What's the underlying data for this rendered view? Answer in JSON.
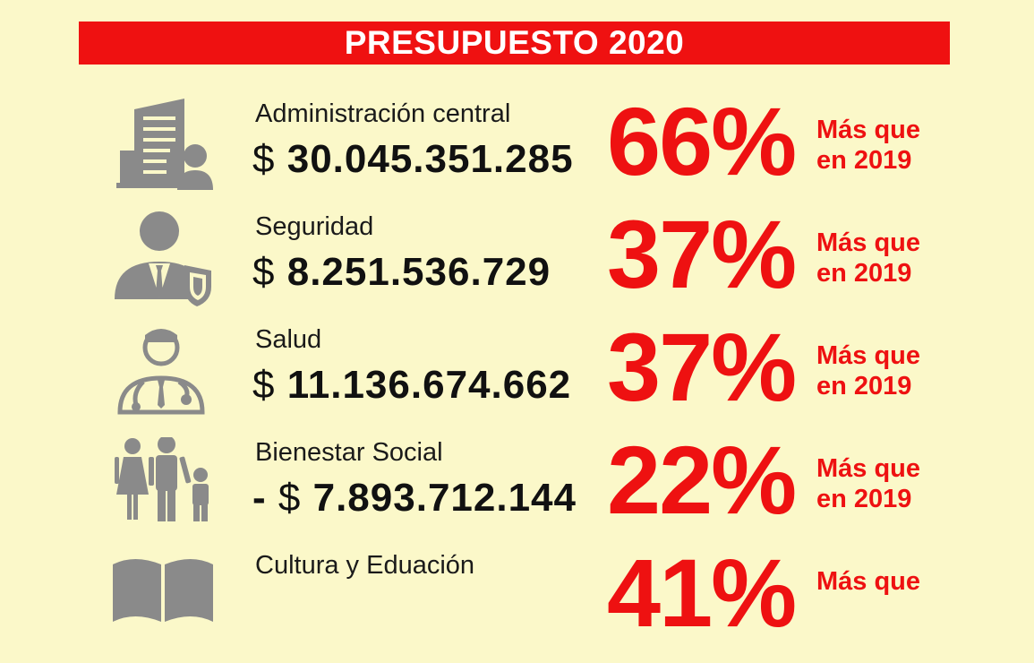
{
  "title": "PRESUPUESTO 2020",
  "colors": {
    "banner": "#ef1111",
    "accent": "#ee1111",
    "icon": "#8a8a8a",
    "background": "#fbf8c9"
  },
  "rows": [
    {
      "category": "Administración central",
      "prefix": "",
      "currency": "$",
      "amount": "30.045.351.285",
      "percent": "66%",
      "note_line1": "Más que",
      "note_line2": "en 2019",
      "icon": "building-person-icon"
    },
    {
      "category": "Seguridad",
      "prefix": "",
      "currency": "$",
      "amount": "8.251.536.729",
      "percent": "37%",
      "note_line1": "Más que",
      "note_line2": "en 2019",
      "icon": "security-person-icon"
    },
    {
      "category": "Salud",
      "prefix": "",
      "currency": "$",
      "amount": "11.136.674.662",
      "percent": "37%",
      "note_line1": "Más que",
      "note_line2": "en 2019",
      "icon": "doctor-icon"
    },
    {
      "category": "Bienestar Social",
      "prefix": "- ",
      "currency": "$",
      "amount": "7.893.712.144",
      "percent": "22%",
      "note_line1": "Más que",
      "note_line2": "en 2019",
      "icon": "family-icon"
    },
    {
      "category": "Cultura y Eduación",
      "prefix": "",
      "currency": "",
      "amount": "",
      "percent": "41%",
      "note_line1": "Más que",
      "note_line2": "",
      "icon": "book-icon"
    }
  ]
}
